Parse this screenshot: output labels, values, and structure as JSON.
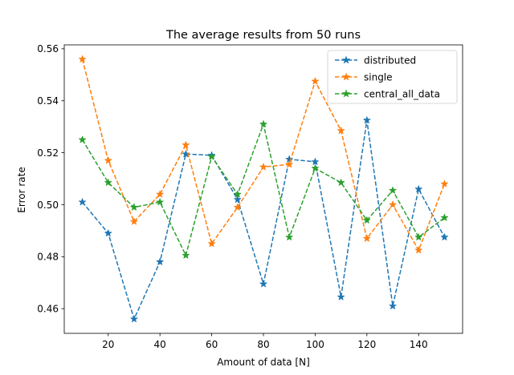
{
  "chart_data": {
    "type": "line",
    "title": "The average results from 50 runs",
    "xlabel": "Amount of data [N]",
    "ylabel": "Error rate",
    "x": [
      10,
      20,
      30,
      40,
      50,
      60,
      70,
      80,
      90,
      100,
      110,
      120,
      130,
      140,
      150
    ],
    "xlim": [
      3,
      157
    ],
    "ylim": [
      0.4505,
      0.5615
    ],
    "xticks": [
      20,
      40,
      60,
      80,
      100,
      120,
      140
    ],
    "yticks": [
      0.46,
      0.48,
      0.5,
      0.52,
      0.54,
      0.56
    ],
    "xtick_labels": [
      "20",
      "40",
      "60",
      "80",
      "100",
      "120",
      "140"
    ],
    "ytick_labels": [
      "0.46",
      "0.48",
      "0.50",
      "0.52",
      "0.54",
      "0.56"
    ],
    "grid": false,
    "legend_position": "top-right",
    "line_style": "dashed",
    "marker": "star",
    "series": [
      {
        "name": "distributed",
        "color": "#1f77b4",
        "values": [
          0.501,
          0.489,
          0.456,
          0.478,
          0.5195,
          0.519,
          0.502,
          0.4695,
          0.5175,
          0.5165,
          0.4645,
          0.5325,
          0.461,
          0.506,
          0.4875
        ]
      },
      {
        "name": "single",
        "color": "#ff7f0e",
        "values": [
          0.556,
          0.517,
          0.4935,
          0.504,
          0.523,
          0.485,
          0.499,
          0.5145,
          0.5155,
          0.5475,
          0.5285,
          0.487,
          0.5,
          0.4825,
          0.508
        ]
      },
      {
        "name": "central_all_data",
        "color": "#2ca02c",
        "values": [
          0.525,
          0.5085,
          0.499,
          0.501,
          0.4805,
          0.5185,
          0.504,
          0.531,
          0.4875,
          0.514,
          0.5085,
          0.494,
          0.5055,
          0.4875,
          0.495
        ]
      }
    ]
  }
}
